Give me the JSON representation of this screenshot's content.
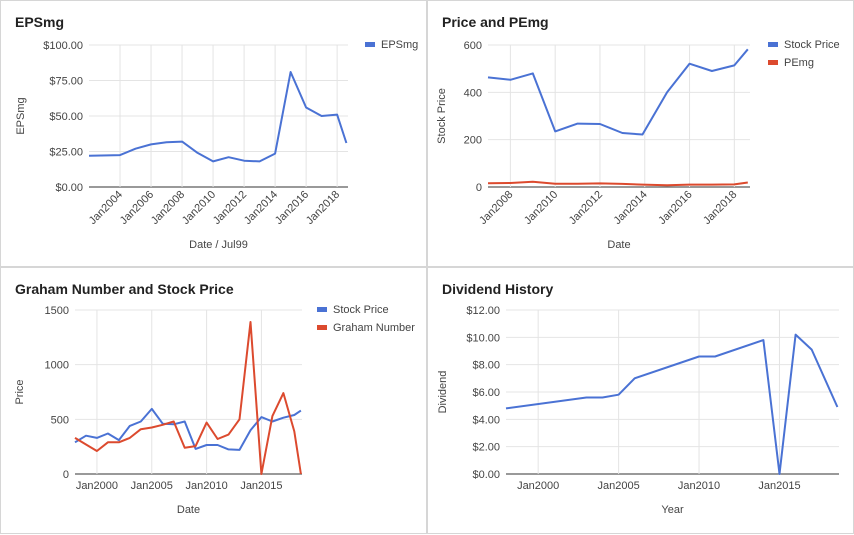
{
  "chart_data": [
    {
      "type": "line",
      "title": "EPSmg",
      "xlabel": "Date / Jul99",
      "ylabel": "EPSmg",
      "xlim": [
        2002.0,
        2018.7
      ],
      "ylim": [
        0,
        100
      ],
      "x_ticks": [
        2004,
        2006,
        2008,
        2010,
        2012,
        2014,
        2016,
        2018
      ],
      "x_tick_labels": [
        "Jan2004",
        "Jan2006",
        "Jan2008",
        "Jan2010",
        "Jan2012",
        "Jan2014",
        "Jan2016",
        "Jan2018"
      ],
      "y_ticks": [
        0,
        25,
        50,
        75,
        100
      ],
      "y_tick_labels": [
        "$0.00",
        "$25.00",
        "$50.00",
        "$75.00",
        "$100.00"
      ],
      "grid": true,
      "legend_position": "top-right",
      "series": [
        {
          "name": "EPSmg",
          "color": "#4a72d4",
          "x": [
            2002.0,
            2004.0,
            2005.0,
            2006.0,
            2007.0,
            2008.0,
            2009.0,
            2010.0,
            2011.0,
            2012.0,
            2013.0,
            2014.0,
            2015.0,
            2016.0,
            2017.0,
            2018.0,
            2018.6
          ],
          "y": [
            22,
            22.5,
            27,
            30,
            31.5,
            32,
            24,
            18,
            21,
            18.5,
            18,
            23.5,
            81,
            56,
            50,
            51,
            31
          ]
        }
      ]
    },
    {
      "type": "line",
      "title": "Price and PEmg",
      "xlabel": "Date",
      "ylabel": "Stock Price",
      "xlim": [
        2007.0,
        2018.7
      ],
      "ylim": [
        0,
        600
      ],
      "x_ticks": [
        2008,
        2010,
        2012,
        2014,
        2016,
        2018
      ],
      "x_tick_labels": [
        "Jan2008",
        "Jan2010",
        "Jan2012",
        "Jan2014",
        "Jan2016",
        "Jan2018"
      ],
      "y_ticks": [
        0,
        200,
        400,
        600
      ],
      "y_tick_labels": [
        "0",
        "200",
        "400",
        "600"
      ],
      "grid": true,
      "legend_position": "top-right",
      "series": [
        {
          "name": "Stock Price",
          "color": "#4a72d4",
          "x": [
            2007.0,
            2008.0,
            2009.0,
            2010.0,
            2011.0,
            2012.0,
            2013.0,
            2013.9,
            2015.0,
            2016.0,
            2017.0,
            2018.0,
            2018.6
          ],
          "y": [
            463,
            453,
            480,
            235,
            268,
            266,
            228,
            222,
            400,
            521,
            490,
            514,
            582
          ]
        },
        {
          "name": "PEmg",
          "color": "#dc4a2e",
          "x": [
            2007.0,
            2008.0,
            2009.0,
            2010.0,
            2011.0,
            2012.0,
            2013.0,
            2013.9,
            2015.0,
            2016.0,
            2017.0,
            2018.0,
            2018.6
          ],
          "y": [
            16,
            17,
            22,
            14,
            14,
            15,
            13,
            10,
            7,
            10,
            10,
            11,
            19
          ]
        }
      ]
    },
    {
      "type": "line",
      "title": "Graham Number and Stock Price",
      "xlabel": "Date",
      "ylabel": "Price",
      "xlim": [
        1998.0,
        2018.7
      ],
      "ylim": [
        0,
        1500
      ],
      "x_ticks": [
        2000,
        2005,
        2010,
        2015
      ],
      "x_tick_labels": [
        "Jan2000",
        "Jan2005",
        "Jan2010",
        "Jan2015"
      ],
      "y_ticks": [
        0,
        500,
        1000,
        1500
      ],
      "y_tick_labels": [
        "0",
        "500",
        "1000",
        "1500"
      ],
      "grid": true,
      "legend_position": "top-right",
      "series": [
        {
          "name": "Stock Price",
          "color": "#4a72d4",
          "x": [
            1998.0,
            1999.0,
            2000.0,
            2001.0,
            2002.0,
            2003.0,
            2004.0,
            2005.0,
            2006.0,
            2007.0,
            2008.0,
            2009.0,
            2010.0,
            2011.0,
            2012.0,
            2013.0,
            2014.0,
            2015.0,
            2016.0,
            2017.0,
            2018.0,
            2018.6
          ],
          "y": [
            290,
            350,
            330,
            370,
            310,
            440,
            480,
            595,
            460,
            455,
            480,
            230,
            265,
            265,
            225,
            220,
            400,
            520,
            480,
            515,
            540,
            580
          ]
        },
        {
          "name": "Graham Number",
          "color": "#dc4a2e",
          "x": [
            1998.0,
            1999.0,
            2000.0,
            2001.0,
            2002.0,
            2003.0,
            2004.0,
            2005.0,
            2006.0,
            2007.0,
            2008.0,
            2009.0,
            2010.0,
            2011.0,
            2012.0,
            2013.0,
            2014.0,
            2015.0,
            2016.0,
            2017.0,
            2018.0,
            2018.6
          ],
          "y": [
            330,
            270,
            210,
            290,
            290,
            330,
            410,
            425,
            450,
            480,
            240,
            255,
            470,
            320,
            360,
            500,
            1390,
            0,
            530,
            740,
            390,
            0
          ]
        }
      ]
    },
    {
      "type": "line",
      "title": "Dividend History",
      "xlabel": "Year",
      "ylabel": "Dividend",
      "xlim": [
        1998.0,
        2018.7
      ],
      "ylim": [
        0,
        12
      ],
      "x_ticks": [
        2000,
        2005,
        2010,
        2015
      ],
      "x_tick_labels": [
        "Jan2000",
        "Jan2005",
        "Jan2010",
        "Jan2015"
      ],
      "y_ticks": [
        0,
        2,
        4,
        6,
        8,
        10,
        12
      ],
      "y_tick_labels": [
        "$0.00",
        "$2.00",
        "$4.00",
        "$6.00",
        "$8.00",
        "$10.00",
        "$12.00"
      ],
      "grid": true,
      "legend_position": "none",
      "series": [
        {
          "name": "",
          "color": "#4a72d4",
          "x": [
            1998.0,
            2003.0,
            2004.0,
            2005.0,
            2006.0,
            2010.0,
            2011.0,
            2014.0,
            2015.0,
            2016.0,
            2017.0,
            2018.6
          ],
          "y": [
            4.8,
            5.6,
            5.6,
            5.8,
            7.0,
            8.6,
            8.6,
            9.8,
            0.0,
            10.2,
            9.1,
            4.9
          ]
        }
      ]
    }
  ]
}
